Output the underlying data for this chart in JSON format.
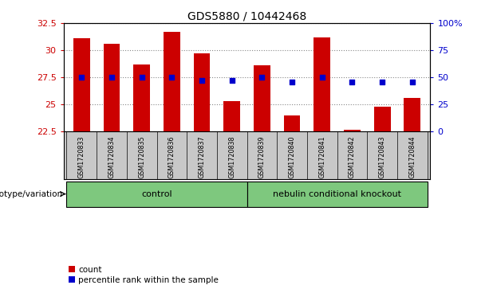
{
  "title": "GDS5880 / 10442468",
  "samples": [
    "GSM1720833",
    "GSM1720834",
    "GSM1720835",
    "GSM1720836",
    "GSM1720837",
    "GSM1720838",
    "GSM1720839",
    "GSM1720840",
    "GSM1720841",
    "GSM1720842",
    "GSM1720843",
    "GSM1720844"
  ],
  "counts": [
    31.1,
    30.6,
    28.7,
    31.7,
    29.7,
    25.3,
    28.6,
    24.0,
    31.2,
    22.7,
    24.8,
    25.6
  ],
  "percentiles": [
    50,
    50,
    50,
    50,
    47,
    47,
    50,
    46,
    50,
    46,
    46,
    46
  ],
  "ylim_left": [
    22.5,
    32.5
  ],
  "ylim_right": [
    0,
    100
  ],
  "yticks_left": [
    22.5,
    25.0,
    27.5,
    30.0,
    32.5
  ],
  "yticks_right": [
    0,
    25,
    50,
    75,
    100
  ],
  "ytick_labels_left": [
    "22.5",
    "25",
    "27.5",
    "30",
    "32.5"
  ],
  "ytick_labels_right": [
    "0",
    "25",
    "50",
    "75",
    "100%"
  ],
  "baseline": 22.5,
  "bar_color": "#cc0000",
  "dot_color": "#0000cc",
  "groups": [
    {
      "label": "control",
      "start": 0,
      "end": 6
    },
    {
      "label": "nebulin conditional knockout",
      "start": 6,
      "end": 12
    }
  ],
  "group_color": "#7ec87e",
  "group_row_label": "genotype/variation",
  "legend_count_label": "count",
  "legend_pct_label": "percentile rank within the sample",
  "axis_color_left": "#cc0000",
  "axis_color_right": "#0000cc",
  "bar_width": 0.55,
  "sample_bg_color": "#c8c8c8",
  "dot_size": 18
}
